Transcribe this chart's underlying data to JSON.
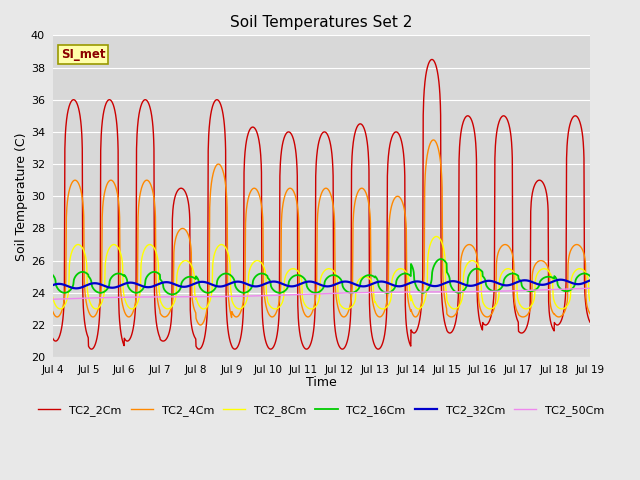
{
  "title": "Soil Temperatures Set 2",
  "xlabel": "Time",
  "ylabel": "Soil Temperature (C)",
  "ylim": [
    20,
    40
  ],
  "yticks": [
    20,
    22,
    24,
    26,
    28,
    30,
    32,
    34,
    36,
    38,
    40
  ],
  "xtick_labels": [
    "Jul 4",
    "Jul 5",
    "Jul 6",
    "Jul 7",
    "Jul 8",
    "Jul 9",
    "Jul 10",
    "Jul 11",
    "Jul 12",
    "Jul 13",
    "Jul 14",
    "Jul 15",
    "Jul 16",
    "Jul 17",
    "Jul 18",
    "Jul 19"
  ],
  "annotation_text": "SI_met",
  "bg_color": "#e8e8e8",
  "plot_bg_color": "#d8d8d8",
  "grid_color": "#ffffff",
  "series": [
    {
      "label": "TC2_2Cm",
      "color": "#cc0000",
      "lw": 1.0
    },
    {
      "label": "TC2_4Cm",
      "color": "#ff8800",
      "lw": 1.0
    },
    {
      "label": "TC2_8Cm",
      "color": "#ffff00",
      "lw": 1.0
    },
    {
      "label": "TC2_16Cm",
      "color": "#00cc00",
      "lw": 1.3
    },
    {
      "label": "TC2_32Cm",
      "color": "#0000cc",
      "lw": 1.6
    },
    {
      "label": "TC2_50Cm",
      "color": "#ee88ee",
      "lw": 1.0
    }
  ]
}
